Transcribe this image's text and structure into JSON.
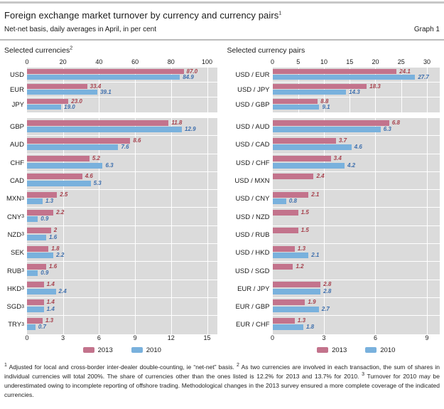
{
  "header": {
    "title": "Foreign exchange market turnover by currency and currency pairs",
    "title_footnote": "1",
    "subtitle": "Net-net basis, daily averages in April, in per cent",
    "graph_label": "Graph 1"
  },
  "panel_titles": {
    "left": "Selected currencies",
    "left_footnote": "2",
    "right": "Selected currency pairs"
  },
  "legend": {
    "year_2013": "2013",
    "year_2010": "2010",
    "position": "bottom"
  },
  "colors": {
    "bar_2013": "#c3738c",
    "bar_2010": "#79b1dd",
    "label_2013": "#a6404c",
    "label_2010": "#3e6fad",
    "panel_bg": "#dbdbdb",
    "gridline": "#ffffff"
  },
  "chart_data": [
    {
      "type": "bar",
      "orientation": "horizontal",
      "position": "top-left",
      "title": "Selected currencies",
      "axis_position": "top",
      "xlim": [
        0,
        100
      ],
      "ticks": [
        0,
        20,
        40,
        60,
        80,
        100
      ],
      "grid": true,
      "categories": [
        "USD",
        "EUR",
        "JPY"
      ],
      "category_footnotes": [
        "",
        "",
        ""
      ],
      "series": [
        {
          "name": "2013",
          "color": "#c3738c",
          "label_color": "#a6404c",
          "values": [
            87.0,
            33.4,
            23.0
          ],
          "labels": [
            "87.0",
            "33.4",
            "23.0"
          ]
        },
        {
          "name": "2010",
          "color": "#79b1dd",
          "label_color": "#3e6fad",
          "values": [
            84.9,
            39.1,
            19.0
          ],
          "labels": [
            "84.9",
            "39.1",
            "19.0"
          ]
        }
      ]
    },
    {
      "type": "bar",
      "orientation": "horizontal",
      "position": "top-right",
      "title": "Selected currency pairs",
      "axis_position": "top",
      "xlim": [
        0,
        30
      ],
      "ticks": [
        0,
        5,
        10,
        15,
        20,
        25,
        30
      ],
      "grid": true,
      "categories": [
        "USD / EUR",
        "USD / JPY",
        "USD / GBP"
      ],
      "category_footnotes": [
        "",
        "",
        ""
      ],
      "series": [
        {
          "name": "2013",
          "color": "#c3738c",
          "label_color": "#a6404c",
          "values": [
            24.1,
            18.3,
            8.8
          ],
          "labels": [
            "24.1",
            "18.3",
            "8.8"
          ]
        },
        {
          "name": "2010",
          "color": "#79b1dd",
          "label_color": "#3e6fad",
          "values": [
            27.7,
            14.3,
            9.1
          ],
          "labels": [
            "27.7",
            "14.3",
            "9.1"
          ]
        }
      ]
    },
    {
      "type": "bar",
      "orientation": "horizontal",
      "position": "bottom-left",
      "title": "Selected currencies (continued)",
      "axis_position": "bottom",
      "xlim": [
        0,
        15
      ],
      "ticks": [
        0,
        3,
        6,
        9,
        12,
        15
      ],
      "grid": true,
      "categories": [
        "GBP",
        "AUD",
        "CHF",
        "CAD",
        "MXN",
        "CNY",
        "NZD",
        "SEK",
        "RUB",
        "HKD",
        "SGD",
        "TRY"
      ],
      "category_footnotes": [
        "",
        "",
        "",
        "",
        "3",
        "3",
        "3",
        "",
        "3",
        "3",
        "3",
        "3"
      ],
      "series": [
        {
          "name": "2013",
          "color": "#c3738c",
          "label_color": "#a6404c",
          "values": [
            11.8,
            8.6,
            5.2,
            4.6,
            2.5,
            2.2,
            2,
            1.8,
            1.6,
            1.4,
            1.4,
            1.3
          ],
          "labels": [
            "11.8",
            "8.6",
            "5.2",
            "4.6",
            "2.5",
            "2.2",
            "2",
            "1.8",
            "1.6",
            "1.4",
            "1.4",
            "1.3"
          ]
        },
        {
          "name": "2010",
          "color": "#79b1dd",
          "label_color": "#3e6fad",
          "values": [
            12.9,
            7.6,
            6.3,
            5.3,
            1.3,
            0.9,
            1.6,
            2.2,
            0.9,
            2.4,
            1.4,
            0.7
          ],
          "labels": [
            "12.9",
            "7.6",
            "6.3",
            "5.3",
            "1.3",
            "0.9",
            "1.6",
            "2.2",
            "0.9",
            "2.4",
            "1.4",
            "0.7"
          ]
        }
      ]
    },
    {
      "type": "bar",
      "orientation": "horizontal",
      "position": "bottom-right",
      "title": "Selected currency pairs (continued)",
      "axis_position": "bottom",
      "xlim": [
        0,
        9
      ],
      "ticks": [
        0,
        3,
        6,
        9
      ],
      "grid": true,
      "categories": [
        "USD / AUD",
        "USD / CAD",
        "USD / CHF",
        "USD / MXN",
        "USD / CNY",
        "USD / NZD",
        "USD / RUB",
        "USD / HKD",
        "USD / SGD",
        "EUR / JPY",
        "EUR / GBP",
        "EUR / CHF"
      ],
      "category_footnotes": [
        "",
        "",
        "",
        "",
        "",
        "",
        "",
        "",
        "",
        "",
        "",
        ""
      ],
      "series": [
        {
          "name": "2013",
          "color": "#c3738c",
          "label_color": "#a6404c",
          "values": [
            6.8,
            3.7,
            3.4,
            2.4,
            2.1,
            1.5,
            1.5,
            1.3,
            1.2,
            2.8,
            1.9,
            1.3
          ],
          "labels": [
            "6.8",
            "3.7",
            "3.4",
            "2.4",
            "2.1",
            "1.5",
            "1.5",
            "1.3",
            "1.2",
            "2.8",
            "1.9",
            "1.3"
          ]
        },
        {
          "name": "2010",
          "color": "#79b1dd",
          "label_color": "#3e6fad",
          "values": [
            6.3,
            4.6,
            4.2,
            null,
            0.8,
            null,
            null,
            2.1,
            null,
            2.8,
            2.7,
            1.8
          ],
          "labels": [
            "6.3",
            "4.6",
            "4.2",
            null,
            "0.8",
            null,
            null,
            "2.1",
            null,
            "2.8",
            "2.7",
            "1.8"
          ]
        }
      ]
    }
  ],
  "footnotes": [
    {
      "marker": "1",
      "text": "Adjusted for local and cross-border inter-dealer double-counting, ie “net-net” basis."
    },
    {
      "marker": "2",
      "text": "As two currencies are involved in each transaction, the sum of shares in individual currencies will total 200%. The share of currencies other than the ones listed is 12.2% for 2013 and 13.7% for 2010."
    },
    {
      "marker": "3",
      "text": "Turnover for 2010 may be underestimated owing to incomplete reporting of offshore trading. Methodological changes in the 2013 survey ensured a more complete coverage of the indicated currencies."
    }
  ]
}
